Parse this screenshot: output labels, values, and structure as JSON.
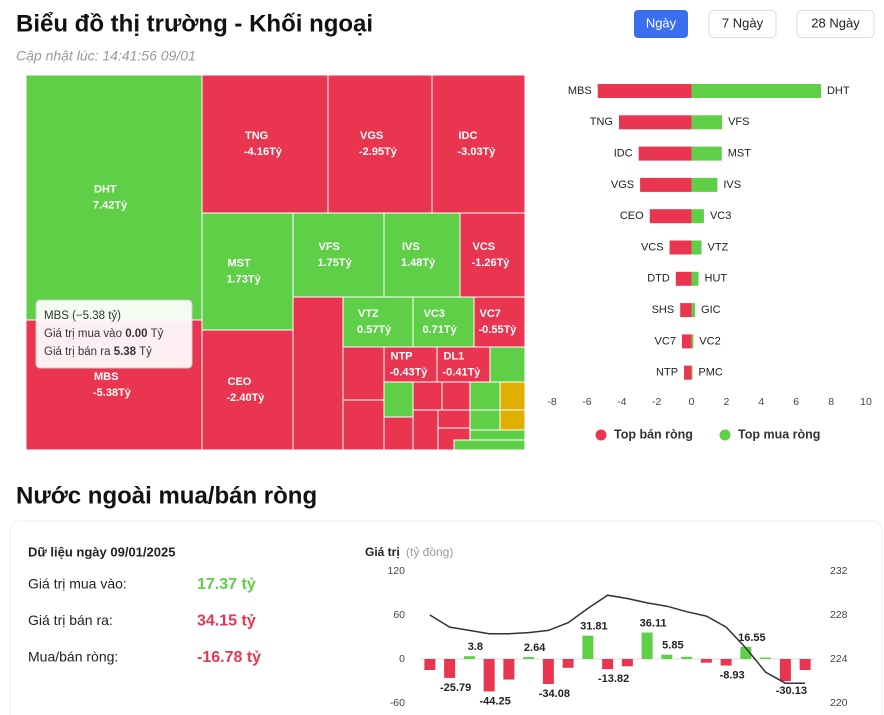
{
  "header": {
    "title": "Biểu đồ thị trường - Khối ngoại",
    "updated": "Cập nhật lúc: 14:41:56 09/01"
  },
  "tabs": [
    "Ngày",
    "7 Ngày",
    "28 Ngày"
  ],
  "tooltip": {
    "title": "MBS (−5.38 tỷ)",
    "rows": [
      {
        "label": "Giá trị mua vào",
        "value": "0.00",
        "unit": "Tỷ"
      },
      {
        "label": "Giá trị bán ra",
        "value": "5.38",
        "unit": "Tỷ"
      }
    ]
  },
  "chart_data": [
    {
      "type": "treemap",
      "categories": [
        "DHT",
        "MBS",
        "TNG",
        "VGS",
        "IDC",
        "MST",
        "VFS",
        "IVS",
        "VCS",
        "CEO",
        "VTZ",
        "VC3",
        "VC7",
        "NTP",
        "DL1"
      ],
      "values": [
        7.42,
        -5.38,
        -4.16,
        -2.95,
        -3.03,
        1.73,
        1.75,
        1.48,
        -1.26,
        -2.4,
        0.57,
        0.71,
        -0.55,
        -0.43,
        -0.41
      ],
      "value_labels": [
        "7.42Tỷ",
        "-5.38Tỷ",
        "-4.16Tỷ",
        "-2.95Tỷ",
        "-3.03Tỷ",
        "1.73Tỷ",
        "1.75Tỷ",
        "1.48Tỷ",
        "-1.26Tỷ",
        "-2.40Tỷ",
        "0.57Tỷ",
        "0.71Tỷ",
        "-0.55Tỷ",
        "-0.43Tỷ",
        "-0.41Tỷ"
      ],
      "colors": {
        "positive": "#5fcf48",
        "negative": "#ea3550"
      }
    },
    {
      "type": "bar",
      "orientation": "horizontal",
      "series": [
        {
          "name": "Top bán ròng",
          "color": "#ea3550",
          "categories": [
            "MBS",
            "TNG",
            "IDC",
            "VGS",
            "CEO",
            "VCS",
            "DTD",
            "SHS",
            "VC7",
            "NTP"
          ],
          "values": [
            -5.38,
            -4.16,
            -3.03,
            -2.95,
            -2.4,
            -1.26,
            -0.9,
            -0.65,
            -0.55,
            -0.43
          ]
        },
        {
          "name": "Top mua ròng",
          "color": "#5fcf48",
          "categories": [
            "DHT",
            "VFS",
            "MST",
            "IVS",
            "VC3",
            "VTZ",
            "HUT",
            "GIC",
            "VC2",
            "PMC"
          ],
          "values": [
            7.42,
            1.75,
            1.73,
            1.48,
            0.71,
            0.57,
            0.4,
            0.2,
            0.1,
            0.05
          ]
        }
      ],
      "xlim": [
        -8,
        10
      ],
      "xticks": [
        -8,
        -6,
        -4,
        -2,
        0,
        2,
        4,
        6,
        8,
        10
      ],
      "legend": "bottom"
    },
    {
      "type": "combo",
      "ylabel": "Giá trị",
      "yunit": "(tỷ đồng)",
      "ylim": [
        -60,
        120
      ],
      "yticks": [
        -60,
        0,
        60,
        120
      ],
      "y2lim": [
        220,
        232
      ],
      "y2ticks": [
        220,
        224,
        228,
        232
      ],
      "series": [
        {
          "type": "bar",
          "color": "#5fcf48",
          "negative_color": "#ea3550",
          "values": [
            -15,
            -25.79,
            3.8,
            -44.25,
            -28,
            2.64,
            -34.08,
            -12,
            31.81,
            -13.82,
            -10,
            36.11,
            5.85,
            3,
            -5,
            -8.93,
            16.55,
            2,
            -30.13,
            -15
          ],
          "value_labels": [
            null,
            "-25.79",
            "3.8",
            "-44.25",
            null,
            "2.64",
            "-34.08",
            null,
            "31.81",
            "-13.82",
            null,
            "36.11",
            "5.85",
            null,
            null,
            "-8.93",
            "16.55",
            null,
            "-30.13",
            null
          ]
        },
        {
          "type": "line",
          "axis": "y2",
          "color": "#333333",
          "values": [
            228,
            226.9,
            226.6,
            226.3,
            226.3,
            226.4,
            226.6,
            227.3,
            228.6,
            229.8,
            229.5,
            229.1,
            228.8,
            228.3,
            227.9,
            226.9,
            225,
            222.8,
            221.8,
            221.8
          ]
        }
      ]
    }
  ],
  "section_title": "Nước ngoài mua/bán ròng",
  "summary": {
    "title": "Dữ liệu ngày 09/01/2025",
    "rows": [
      {
        "label": "Giá trị mua vào:",
        "value": "17.37 tỷ",
        "color": "#5fcf48"
      },
      {
        "label": "Giá trị bán ra:",
        "value": "34.15 tỷ",
        "color": "#ea3550"
      },
      {
        "label": "Mua/bán ròng:",
        "value": "-16.78 tỷ",
        "color": "#ea3550"
      }
    ]
  }
}
